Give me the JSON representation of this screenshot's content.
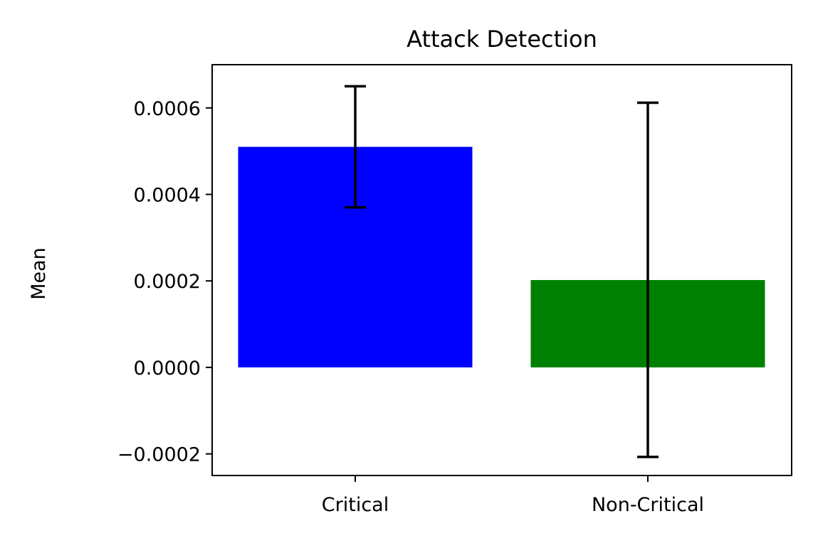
{
  "chart_data": {
    "type": "bar",
    "title": "Attack Detection",
    "xlabel": "",
    "ylabel": "Mean",
    "categories": [
      "Critical",
      "Non-Critical"
    ],
    "values": [
      0.00051,
      0.000202
    ],
    "error_low": [
      0.00037,
      -0.000207
    ],
    "error_high": [
      0.00065,
      0.000612
    ],
    "bar_colors": [
      "#0000ff",
      "#008000"
    ],
    "error_bar_color": "#000000",
    "ylim": [
      -0.00025,
      0.0007
    ],
    "yticks": [
      -0.0002,
      0.0,
      0.0002,
      0.0004,
      0.0006
    ],
    "ytick_labels": [
      "−0.0002",
      "0.0000",
      "0.0002",
      "0.0004",
      "0.0006"
    ],
    "grid": false,
    "legend": "none"
  }
}
